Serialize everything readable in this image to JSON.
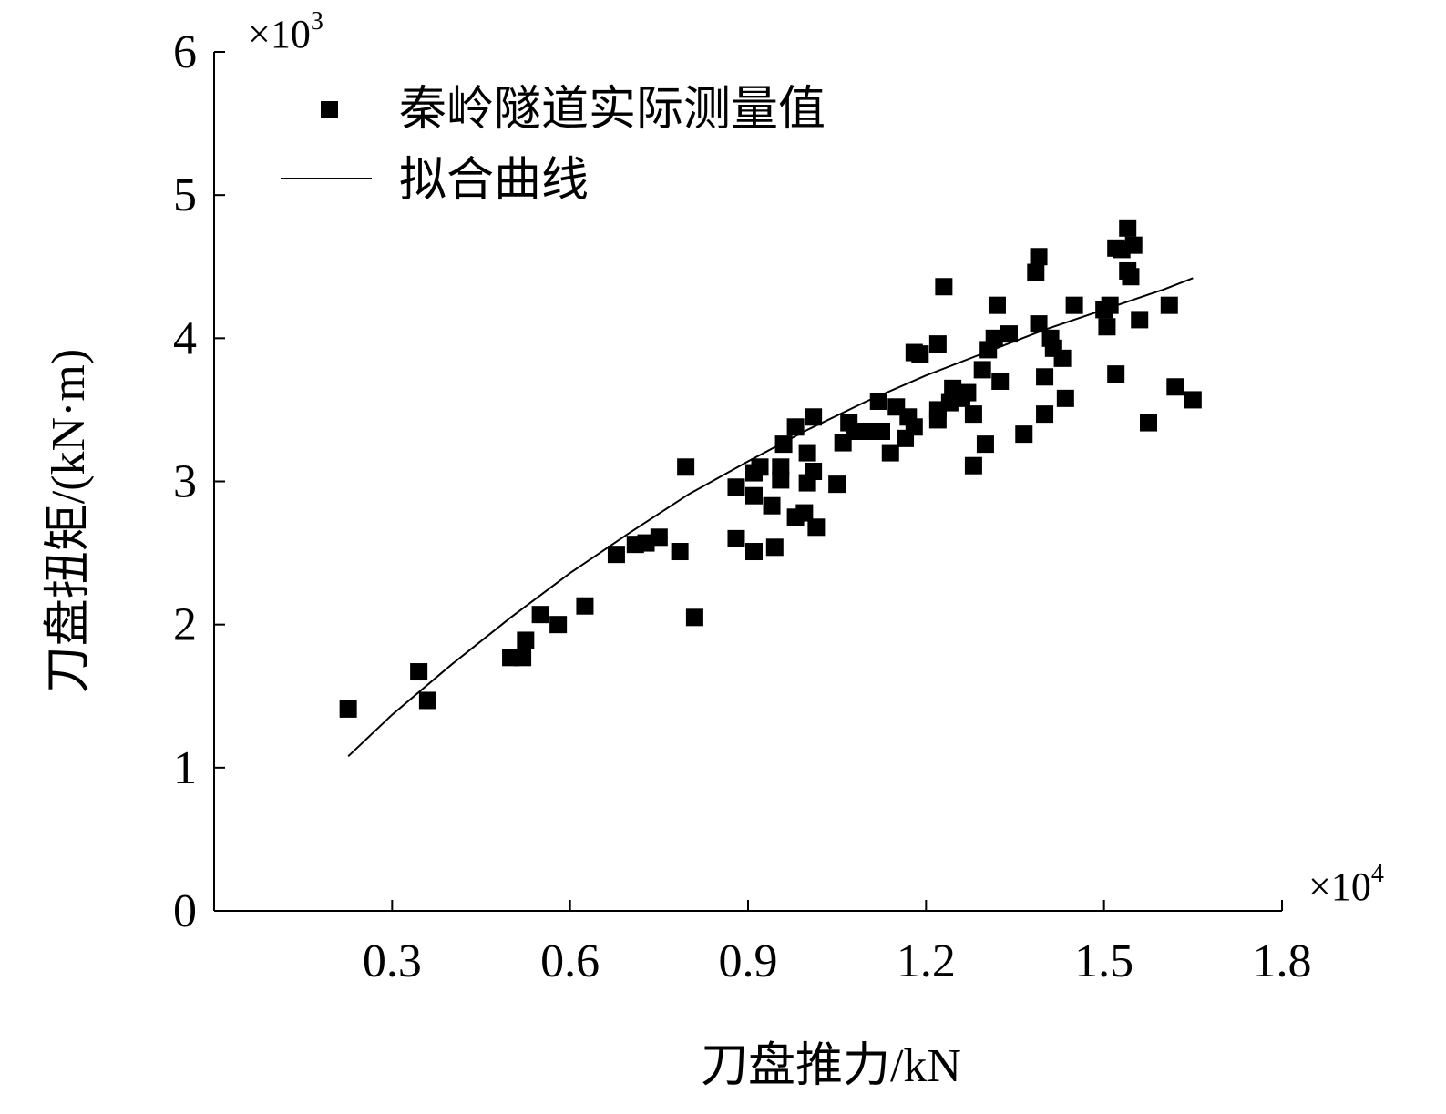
{
  "chart_data": {
    "type": "scatter",
    "xlabel": "刀盘推力/kN",
    "ylabel": "刀盘扭矩/(kN·m)",
    "x_multiplier": "×10",
    "x_multiplier_exp": "4",
    "y_multiplier": "×10",
    "y_multiplier_exp": "3",
    "xlim": [
      0,
      1.8
    ],
    "ylim": [
      0,
      6
    ],
    "xticks": [
      0.3,
      0.6,
      0.9,
      1.2,
      1.5,
      1.8
    ],
    "xtick_labels": [
      "0.3",
      "0.6",
      "0.9",
      "1.2",
      "1.5",
      "1.8"
    ],
    "yticks": [
      0,
      1,
      2,
      3,
      4,
      5,
      6
    ],
    "ytick_labels": [
      "0",
      "1",
      "2",
      "3",
      "4",
      "5",
      "6"
    ],
    "legend_position": "top-left",
    "grid": false,
    "series": [
      {
        "name": "秦岭隧道实际测量值",
        "marker": "square",
        "color": "#000000",
        "points": [
          [
            0.226,
            1.41
          ],
          [
            0.345,
            1.67
          ],
          [
            0.36,
            1.47
          ],
          [
            0.5,
            1.77
          ],
          [
            0.52,
            1.77
          ],
          [
            0.525,
            1.89
          ],
          [
            0.55,
            2.07
          ],
          [
            0.58,
            2.0
          ],
          [
            0.625,
            2.13
          ],
          [
            0.678,
            2.49
          ],
          [
            0.71,
            2.56
          ],
          [
            0.728,
            2.57
          ],
          [
            0.75,
            2.61
          ],
          [
            0.785,
            2.51
          ],
          [
            0.795,
            3.1
          ],
          [
            0.81,
            2.05
          ],
          [
            0.88,
            2.6
          ],
          [
            0.88,
            2.96
          ],
          [
            0.91,
            2.51
          ],
          [
            0.91,
            2.9
          ],
          [
            0.91,
            3.06
          ],
          [
            0.92,
            3.1
          ],
          [
            0.94,
            2.83
          ],
          [
            0.945,
            2.54
          ],
          [
            0.955,
            3.01
          ],
          [
            0.955,
            3.1
          ],
          [
            0.96,
            3.26
          ],
          [
            0.98,
            2.75
          ],
          [
            0.98,
            3.38
          ],
          [
            0.995,
            2.78
          ],
          [
            1.0,
            2.99
          ],
          [
            1.0,
            3.2
          ],
          [
            1.01,
            3.07
          ],
          [
            1.01,
            3.45
          ],
          [
            1.015,
            2.68
          ],
          [
            1.05,
            2.98
          ],
          [
            1.06,
            3.27
          ],
          [
            1.07,
            3.41
          ],
          [
            1.08,
            3.35
          ],
          [
            1.1,
            3.35
          ],
          [
            1.12,
            3.56
          ],
          [
            1.125,
            3.35
          ],
          [
            1.14,
            3.2
          ],
          [
            1.15,
            3.52
          ],
          [
            1.165,
            3.3
          ],
          [
            1.17,
            3.45
          ],
          [
            1.18,
            3.38
          ],
          [
            1.18,
            3.9
          ],
          [
            1.19,
            3.89
          ],
          [
            1.22,
            3.5
          ],
          [
            1.22,
            3.43
          ],
          [
            1.22,
            3.96
          ],
          [
            1.23,
            4.36
          ],
          [
            1.24,
            3.55
          ],
          [
            1.245,
            3.65
          ],
          [
            1.26,
            3.58
          ],
          [
            1.27,
            3.62
          ],
          [
            1.28,
            3.11
          ],
          [
            1.28,
            3.47
          ],
          [
            1.295,
            3.78
          ],
          [
            1.3,
            3.26
          ],
          [
            1.305,
            3.92
          ],
          [
            1.315,
            4.0
          ],
          [
            1.32,
            4.23
          ],
          [
            1.325,
            3.7
          ],
          [
            1.34,
            4.03
          ],
          [
            1.365,
            3.33
          ],
          [
            1.385,
            4.46
          ],
          [
            1.39,
            4.57
          ],
          [
            1.39,
            4.1
          ],
          [
            1.4,
            3.73
          ],
          [
            1.4,
            3.47
          ],
          [
            1.41,
            4.0
          ],
          [
            1.415,
            3.93
          ],
          [
            1.43,
            3.86
          ],
          [
            1.435,
            3.58
          ],
          [
            1.45,
            4.23
          ],
          [
            1.5,
            4.2
          ],
          [
            1.505,
            4.08
          ],
          [
            1.51,
            4.23
          ],
          [
            1.52,
            3.75
          ],
          [
            1.52,
            4.63
          ],
          [
            1.53,
            4.62
          ],
          [
            1.54,
            4.47
          ],
          [
            1.54,
            4.77
          ],
          [
            1.545,
            4.43
          ],
          [
            1.55,
            4.65
          ],
          [
            1.56,
            4.13
          ],
          [
            1.575,
            3.41
          ],
          [
            1.61,
            4.23
          ],
          [
            1.62,
            3.66
          ],
          [
            1.65,
            3.57
          ]
        ]
      },
      {
        "name": "拟合曲线",
        "type": "line",
        "color": "#000000",
        "points": [
          [
            0.226,
            1.08
          ],
          [
            0.3,
            1.37
          ],
          [
            0.4,
            1.72
          ],
          [
            0.5,
            2.05
          ],
          [
            0.6,
            2.36
          ],
          [
            0.7,
            2.64
          ],
          [
            0.8,
            2.91
          ],
          [
            0.9,
            3.14
          ],
          [
            1.0,
            3.36
          ],
          [
            1.1,
            3.56
          ],
          [
            1.2,
            3.74
          ],
          [
            1.3,
            3.9
          ],
          [
            1.4,
            4.06
          ],
          [
            1.5,
            4.2
          ],
          [
            1.6,
            4.34
          ],
          [
            1.65,
            4.42
          ]
        ]
      }
    ]
  }
}
